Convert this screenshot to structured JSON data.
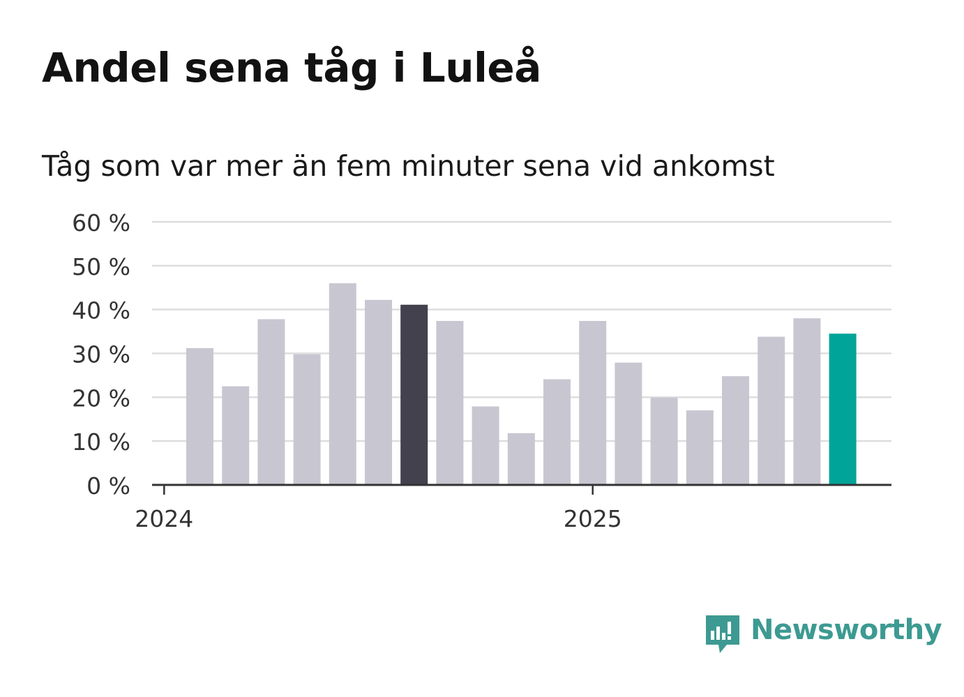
{
  "header": {
    "title": "Andel sena tåg i Luleå",
    "subtitle": "Tåg som var mer än fem minuter sena vid ankomst"
  },
  "brand": {
    "name": "Newsworthy",
    "icon": "newsworthy-logo-icon",
    "color": "#3d9a92"
  },
  "chart_data": {
    "type": "bar",
    "y_ticks": [
      {
        "value": 0,
        "label": "0 %"
      },
      {
        "value": 10,
        "label": "10 %"
      },
      {
        "value": 20,
        "label": "20 %"
      },
      {
        "value": 30,
        "label": "30 %"
      },
      {
        "value": 40,
        "label": "40 %"
      },
      {
        "value": 50,
        "label": "50 %"
      },
      {
        "value": 60,
        "label": "60 %"
      }
    ],
    "ylim": [
      0,
      60
    ],
    "x_ticks": [
      {
        "date": "2024-01",
        "label": "2024"
      },
      {
        "date": "2025-01",
        "label": "2025"
      }
    ],
    "grid": true,
    "categories": [
      "2024-02",
      "2024-03",
      "2024-04",
      "2024-05",
      "2024-06",
      "2024-07",
      "2024-08",
      "2024-09",
      "2024-10",
      "2024-11",
      "2024-12",
      "2025-01",
      "2025-02",
      "2025-03",
      "2025-04",
      "2025-05",
      "2025-06",
      "2025-07",
      "2025-08"
    ],
    "values": [
      31.2,
      22.5,
      37.8,
      29.8,
      46.0,
      42.2,
      41.1,
      37.4,
      17.9,
      11.8,
      24.1,
      37.4,
      27.9,
      19.9,
      17.0,
      24.8,
      33.8,
      38.0,
      34.5
    ],
    "highlights": [
      {
        "category": "2024-08",
        "color": "#42414d"
      },
      {
        "category": "2025-08",
        "color": "#00a499"
      }
    ],
    "colors": {
      "bar": "#c8c7d1",
      "grid": "#dddddd",
      "axis": "#333333",
      "tick_label": "#333333"
    }
  }
}
